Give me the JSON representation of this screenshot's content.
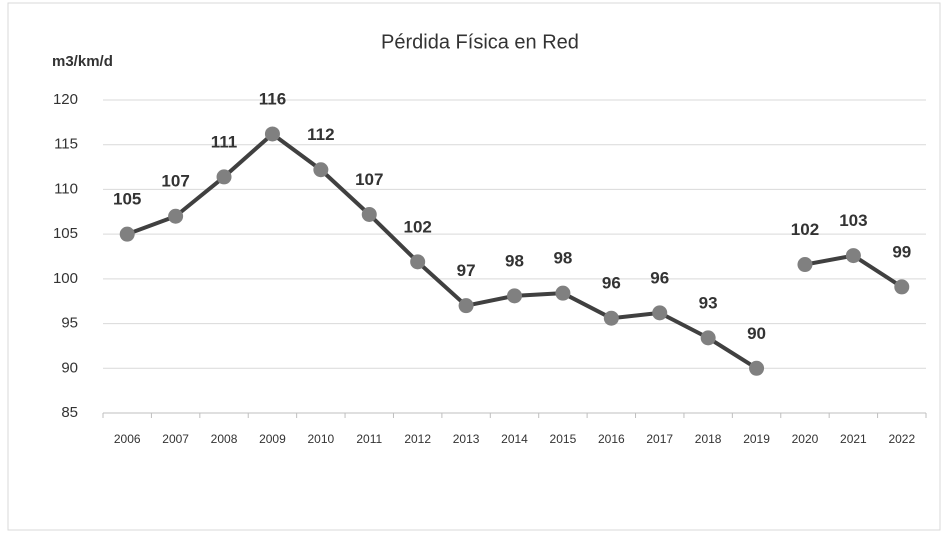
{
  "chart_data": {
    "type": "line",
    "title": "Pérdida Física en Red",
    "y_label": "m3/km/d",
    "categories": [
      "2006",
      "2007",
      "2008",
      "2009",
      "2010",
      "2011",
      "2012",
      "2013",
      "2014",
      "2015",
      "2016",
      "2017",
      "2018",
      "2019",
      "2020",
      "2021",
      "2022"
    ],
    "series": [
      {
        "color": "#404040",
        "values": [
          105,
          107,
          111.4,
          116.2,
          112.2,
          107.2,
          101.9,
          97,
          98.1,
          98.4,
          95.6,
          96.2,
          93.4,
          90,
          null,
          null,
          null
        ],
        "value_labels": [
          "105",
          "107",
          "111",
          "116",
          "112",
          "107",
          "102",
          "97",
          "98",
          "98",
          "96",
          "96",
          "93",
          "90",
          null,
          null,
          null
        ]
      },
      {
        "color": "#404040",
        "values": [
          null,
          null,
          null,
          null,
          null,
          null,
          null,
          null,
          null,
          null,
          null,
          null,
          null,
          null,
          101.6,
          102.6,
          99.1
        ],
        "value_labels": [
          null,
          null,
          null,
          null,
          null,
          null,
          null,
          null,
          null,
          null,
          null,
          null,
          null,
          null,
          "102",
          "103",
          "99"
        ],
        "value_label_colors": [
          null,
          null,
          null,
          null,
          null,
          null,
          null,
          null,
          null,
          null,
          null,
          null,
          null,
          null,
          "#333333",
          "#333333",
          "#e41e26"
        ]
      }
    ],
    "marker_color": "#808080",
    "ylim": [
      85,
      120
    ],
    "yticks": [
      85,
      90,
      95,
      100,
      105,
      110,
      115,
      120
    ],
    "grid": true
  }
}
